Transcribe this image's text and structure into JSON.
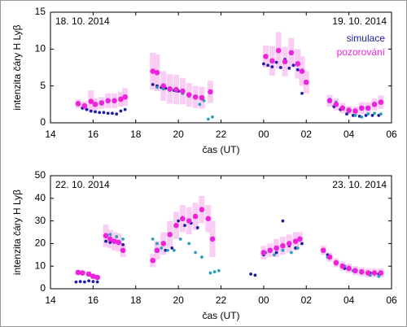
{
  "chart_data": [
    {
      "type": "scatter",
      "xlabel": "čas (UT)",
      "ylabel": "intenzita čáry  H Lyβ",
      "annotations": [
        "18. 10. 2014",
        "19. 10. 2014"
      ],
      "legend": "right",
      "xlim": [
        14,
        30
      ],
      "xticks": [
        14,
        16,
        18,
        20,
        22,
        {
          "value": 24,
          "label": "00"
        },
        {
          "value": 26,
          "label": "02"
        },
        {
          "value": 28,
          "label": "04"
        },
        {
          "value": 30,
          "label": "06"
        }
      ],
      "ylim": [
        0,
        15
      ],
      "yticks": [
        0,
        5,
        10,
        15
      ],
      "series": [
        {
          "name": "simulace",
          "color": "#1c1ca8",
          "x": [
            15.5,
            15.7,
            15.9,
            16.1,
            16.3,
            16.5,
            16.7,
            16.9,
            17.1,
            17.3,
            17.5,
            18.8,
            19.0,
            19.2,
            19.4,
            19.6,
            19.8,
            20.0,
            20.2,
            24.0,
            24.2,
            24.4,
            24.6,
            24.8,
            25.0,
            25.2,
            25.4,
            25.6,
            25.8,
            27.3,
            27.6,
            27.9,
            28.2,
            28.5,
            28.8,
            29.1,
            29.4
          ],
          "values": [
            2.0,
            1.8,
            1.6,
            1.5,
            1.4,
            1.4,
            1.3,
            1.3,
            1.2,
            1.6,
            1.8,
            5.2,
            5.0,
            4.8,
            4.7,
            4.5,
            4.4,
            4.3,
            4.0,
            8.0,
            7.8,
            7.6,
            8.2,
            7.5,
            8.6,
            7.4,
            7.8,
            7.2,
            4.0,
            2.2,
            1.8,
            1.2,
            1.0,
            0.9,
            1.0,
            1.0,
            1.0
          ]
        },
        {
          "color": "#2a9fb8",
          "x": [
            19.0,
            19.3,
            19.6,
            19.9,
            20.2,
            20.5,
            20.8,
            21.0,
            21.2,
            21.4,
            21.6,
            27.1,
            27.4,
            27.7,
            28.0,
            28.3,
            28.6,
            28.9,
            29.2,
            29.5
          ],
          "values": [
            4.8,
            4.6,
            4.4,
            4.3,
            4.0,
            3.6,
            3.4,
            2.5,
            3.0,
            0.5,
            0.8,
            3.2,
            2.8,
            2.0,
            1.5,
            1.0,
            0.8,
            1.2,
            1.3,
            1.2
          ]
        },
        {
          "name": "pozorování",
          "color": "#ee22dd",
          "error_color": "#f9c4f3",
          "x": [
            15.3,
            15.6,
            15.9,
            16.1,
            16.4,
            16.7,
            17.0,
            17.3,
            17.5,
            18.8,
            19.0,
            19.3,
            19.6,
            19.9,
            20.2,
            20.5,
            20.8,
            21.1,
            21.5,
            24.1,
            24.4,
            24.7,
            25.0,
            25.3,
            25.6,
            25.8,
            26.0,
            27.1,
            27.4,
            27.7,
            28.0,
            28.3,
            28.6,
            28.9,
            29.2,
            29.5
          ],
          "values": [
            2.6,
            2.3,
            2.9,
            2.5,
            2.7,
            3.0,
            3.0,
            3.2,
            3.5,
            7.0,
            6.8,
            5.0,
            4.6,
            4.5,
            4.3,
            3.8,
            3.5,
            3.4,
            4.2,
            9.0,
            8.4,
            9.8,
            8.3,
            9.5,
            8.0,
            7.0,
            5.5,
            3.0,
            2.5,
            2.0,
            1.7,
            1.6,
            2.0,
            2.0,
            2.5,
            2.8
          ],
          "errors": [
            0.6,
            0.6,
            1.5,
            0.8,
            0.8,
            1.0,
            1.0,
            1.0,
            1.2,
            2.5,
            2.5,
            2.0,
            2.0,
            2.0,
            1.8,
            1.6,
            1.5,
            1.5,
            1.5,
            1.5,
            2.0,
            2.5,
            2.0,
            2.0,
            2.0,
            2.0,
            1.5,
            0.8,
            0.8,
            0.7,
            0.6,
            0.6,
            0.8,
            0.8,
            0.8,
            0.9
          ]
        }
      ]
    },
    {
      "type": "scatter",
      "xlabel": "čas (UT)",
      "ylabel": "intenzita čáry  H Lyβ",
      "annotations": [
        "22. 10. 2014",
        "23. 10. 2014"
      ],
      "xlim": [
        14,
        30
      ],
      "xticks": [
        14,
        16,
        18,
        20,
        22,
        {
          "value": 24,
          "label": "00"
        },
        {
          "value": 26,
          "label": "02"
        },
        {
          "value": 28,
          "label": "04"
        },
        {
          "value": 30,
          "label": "06"
        }
      ],
      "ylim": [
        0,
        50
      ],
      "yticks": [
        0,
        10,
        20,
        30,
        40,
        50
      ],
      "series": [
        {
          "color": "#1c1ca8",
          "x": [
            15.2,
            15.4,
            15.6,
            15.8,
            16.0,
            16.2,
            16.6,
            16.8,
            17.0,
            17.2,
            17.4,
            19.4,
            19.7,
            20.0,
            20.3,
            20.6,
            20.9,
            23.4,
            23.6,
            24.0,
            24.3,
            24.6,
            24.9,
            25.2,
            25.5,
            25.8,
            27.0,
            27.4,
            27.8,
            28.2,
            28.6,
            29.0,
            29.4
          ],
          "values": [
            3.0,
            3.2,
            3.0,
            3.5,
            3.2,
            3.0,
            21,
            20.5,
            21,
            20,
            19.5,
            17,
            18,
            30,
            28,
            29,
            27,
            6.5,
            6.0,
            15,
            17,
            16,
            30,
            19,
            18,
            20,
            15,
            11,
            9,
            8,
            7,
            7,
            6.5
          ]
        },
        {
          "color": "#2a9fb8",
          "x": [
            16.8,
            17.1,
            17.4,
            18.8,
            19.0,
            19.2,
            19.5,
            19.8,
            20.1,
            20.5,
            20.8,
            21.1,
            21.5,
            21.7,
            21.9,
            24.1,
            24.5,
            24.9,
            25.3,
            25.6,
            27.0,
            27.4,
            27.8,
            28.2,
            28.6,
            29.0,
            29.4
          ],
          "values": [
            24,
            23,
            22,
            22,
            20,
            18,
            17,
            17,
            22,
            20,
            16,
            14,
            7,
            7.5,
            8,
            16,
            15,
            17,
            16,
            18,
            14,
            12,
            10,
            8,
            7,
            6,
            5.5
          ]
        },
        {
          "color": "#ee22dd",
          "error_color": "#f9c4f3",
          "x": [
            15.3,
            15.5,
            15.8,
            16.0,
            16.2,
            16.6,
            16.8,
            17.0,
            17.2,
            17.4,
            18.8,
            19.0,
            19.3,
            19.6,
            19.9,
            20.2,
            20.5,
            20.8,
            21.1,
            21.4,
            21.6,
            24.0,
            24.3,
            24.6,
            24.9,
            25.2,
            25.5,
            25.7,
            26.8,
            27.1,
            27.4,
            27.7,
            28.0,
            28.3,
            28.6,
            28.9,
            29.2,
            29.5
          ],
          "values": [
            7.2,
            7.0,
            6.5,
            5.5,
            5.0,
            23.5,
            22,
            21,
            20.5,
            17,
            12.5,
            17,
            20,
            24,
            28,
            31,
            30,
            32,
            35,
            31,
            22,
            16,
            17,
            18,
            19,
            20,
            21,
            22,
            17,
            14,
            11.5,
            10,
            9,
            8,
            7.5,
            7,
            7,
            7
          ],
          "errors": [
            1,
            1,
            1,
            1,
            1,
            5,
            4,
            4,
            4,
            3,
            3,
            4,
            5,
            6,
            6,
            6,
            6,
            6,
            6,
            6,
            8,
            3,
            3,
            4,
            4,
            4,
            4,
            3,
            2,
            2,
            2,
            2,
            2,
            2,
            2,
            2,
            2,
            2
          ]
        }
      ]
    }
  ]
}
